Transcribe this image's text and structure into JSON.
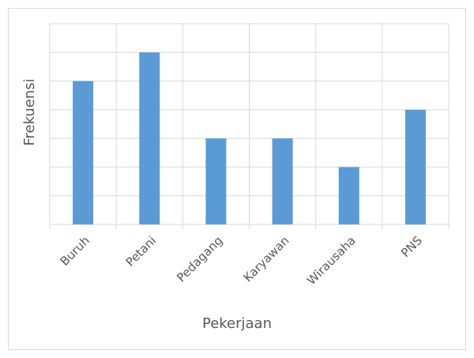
{
  "chart_data": {
    "type": "bar",
    "x_label": "Pekerjaan",
    "y_label": "Frekuensi",
    "categories": [
      "Buruh",
      "Petani",
      "Pedagang",
      "Karyawan",
      "Wirausaha",
      "PNS"
    ],
    "values": [
      5,
      6,
      3,
      3,
      2,
      4
    ],
    "color": "#5b9bd5",
    "ylim": [
      0,
      7
    ],
    "yticks": [
      0,
      1,
      2,
      3,
      4,
      5,
      6,
      7
    ],
    "grid": true
  }
}
